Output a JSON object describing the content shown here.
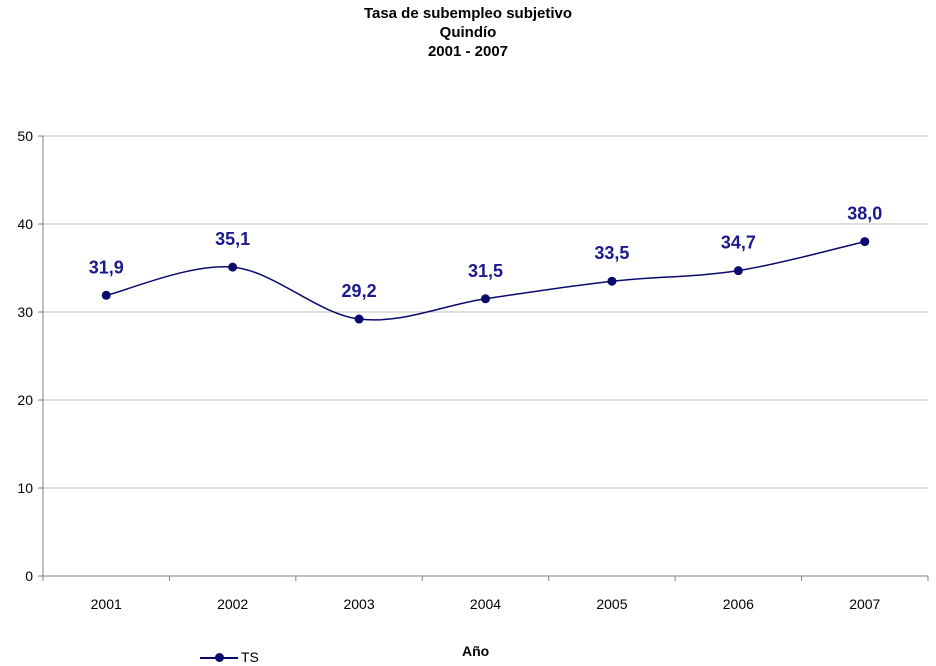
{
  "chart_data": {
    "type": "line",
    "title": "Tasa de subempleo subjetivo",
    "subtitle": "Quindío",
    "period": "2001 - 2007",
    "xlabel": "Año",
    "ylabel": "",
    "categories": [
      "2001",
      "2002",
      "2003",
      "2004",
      "2005",
      "2006",
      "2007"
    ],
    "series": [
      {
        "name": "TS",
        "values": [
          31.9,
          35.1,
          29.2,
          31.5,
          33.5,
          34.7,
          38.0
        ],
        "labels": [
          "31,9",
          "35,1",
          "29,2",
          "31,5",
          "33,5",
          "34,7",
          "38,0"
        ],
        "color": "#0a0a6e",
        "label_color": "#1a1a8c"
      }
    ],
    "ylim": [
      0,
      50
    ],
    "yticks": [
      0,
      10,
      20,
      30,
      40,
      50
    ],
    "grid": true,
    "legend_position": "bottom-left"
  }
}
